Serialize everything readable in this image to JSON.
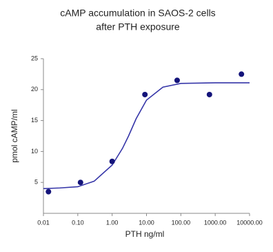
{
  "chart_data": {
    "type": "scatter",
    "title": [
      "cAMP accumulation in SAOS-2 cells",
      "after PTH exposure"
    ],
    "x_label": "PTH ng/ml",
    "y_label": "pmol cAMP/ml",
    "x_scale": "log",
    "xlim": [
      0.01,
      10000
    ],
    "ylim": [
      0,
      25
    ],
    "xticks": [
      {
        "value": 0.01,
        "label": "0.01"
      },
      {
        "value": 0.1,
        "label": "0.10"
      },
      {
        "value": 1,
        "label": "1.00"
      },
      {
        "value": 10,
        "label": "10.00"
      },
      {
        "value": 100,
        "label": "100.00"
      },
      {
        "value": 1000,
        "label": "1000.00"
      },
      {
        "value": 10000,
        "label": "10000.00"
      }
    ],
    "yticks": [
      5,
      10,
      15,
      20,
      25
    ],
    "series": [
      {
        "type": "scatter",
        "color": "#14147a",
        "x": [
          0.014,
          0.12,
          1,
          9,
          78,
          680,
          5800
        ],
        "values": [
          3.5,
          5.0,
          8.4,
          19.2,
          21.5,
          19.2,
          22.5
        ]
      },
      {
        "type": "line",
        "color": "#3535a8",
        "x": [
          0.01,
          0.03,
          0.1,
          0.3,
          1,
          2,
          3,
          5,
          10,
          30,
          100,
          1000,
          10000
        ],
        "values": [
          4.0,
          4.1,
          4.3,
          5.2,
          7.8,
          10.5,
          12.5,
          15.3,
          18.3,
          20.4,
          21.0,
          21.1,
          21.1
        ]
      }
    ]
  }
}
